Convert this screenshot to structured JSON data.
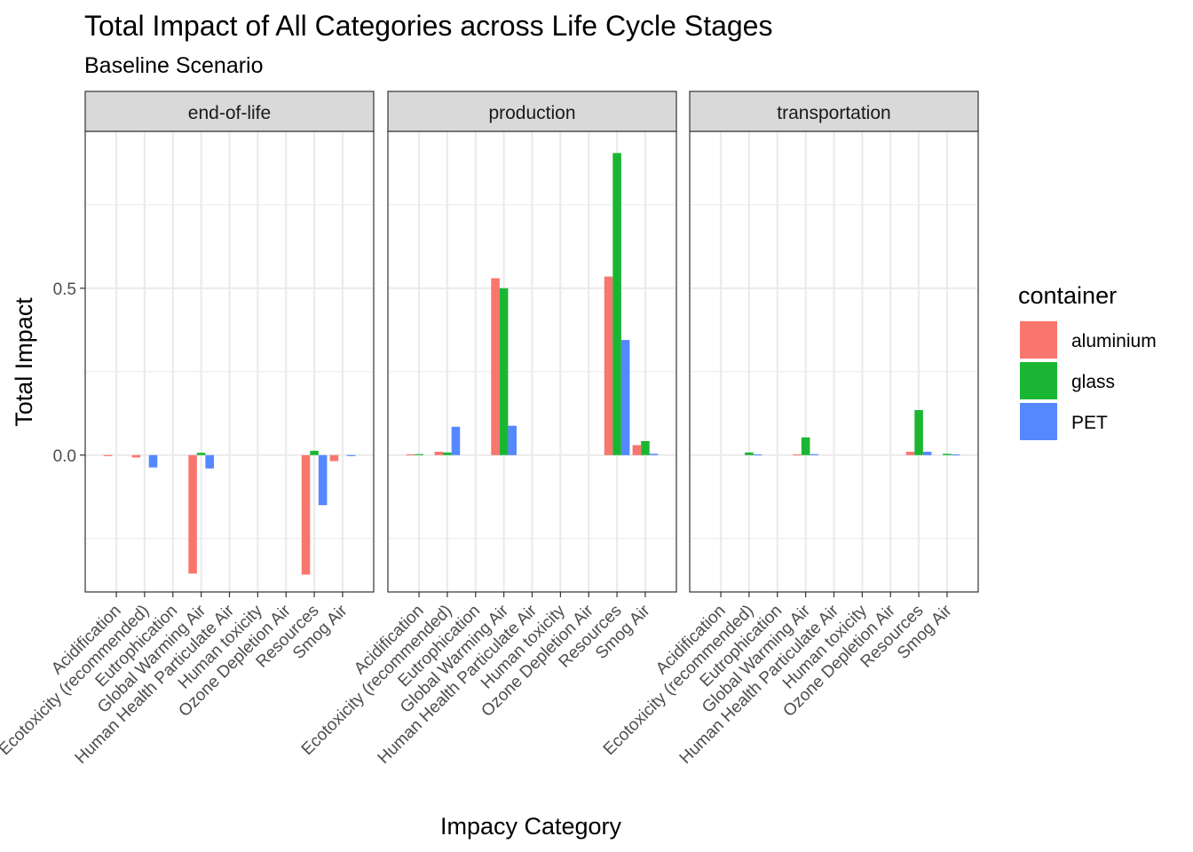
{
  "chart_data": {
    "type": "bar",
    "title": "Total Impact of All Categories across Life Cycle Stages",
    "subtitle": "Baseline Scenario",
    "xlabel": "Impacy Category",
    "ylabel": "Total Impact",
    "ylim": [
      -0.41,
      0.97
    ],
    "yticks": [
      0.0,
      0.5
    ],
    "ytick_labels": [
      "0.0",
      "0.5"
    ],
    "grid": true,
    "legend": {
      "title": "container",
      "placement": "right",
      "items": [
        {
          "label": "aluminium",
          "color": "#F8766D"
        },
        {
          "label": "glass",
          "color": "#1AB633"
        },
        {
          "label": "PET",
          "color": "#5587FF"
        }
      ]
    },
    "categories": [
      "Acidification",
      "Ecotoxicity (recommended)",
      "Eutrophication",
      "Global Warming Air",
      "Human Health Particulate Air",
      "Human toxicity",
      "Ozone Depletion Air",
      "Resources",
      "Smog Air"
    ],
    "facets": [
      {
        "name": "end-of-life",
        "series": [
          {
            "name": "aluminium",
            "values": [
              -0.003,
              -0.007,
              0.0,
              -0.355,
              0.0,
              0.0,
              0.0,
              -0.358,
              -0.018
            ]
          },
          {
            "name": "glass",
            "values": [
              0.0,
              0.0,
              0.0,
              0.007,
              0.0,
              0.0,
              0.0,
              0.013,
              0.0
            ]
          },
          {
            "name": "PET",
            "values": [
              0.0,
              -0.037,
              0.0,
              -0.04,
              0.0,
              0.0,
              0.0,
              -0.15,
              -0.003
            ]
          }
        ]
      },
      {
        "name": "production",
        "series": [
          {
            "name": "aluminium",
            "values": [
              0.002,
              0.01,
              0.0,
              0.53,
              0.0,
              0.0,
              0.0,
              0.535,
              0.03
            ]
          },
          {
            "name": "glass",
            "values": [
              0.003,
              0.008,
              0.0,
              0.5,
              0.0,
              0.0,
              0.0,
              0.905,
              0.042
            ]
          },
          {
            "name": "PET",
            "values": [
              0.0,
              0.085,
              0.0,
              0.088,
              0.0,
              0.0,
              0.0,
              0.345,
              0.004
            ]
          }
        ]
      },
      {
        "name": "transportation",
        "series": [
          {
            "name": "aluminium",
            "values": [
              0.0,
              0.0,
              0.0,
              0.002,
              0.0,
              0.0,
              0.0,
              0.01,
              0.0
            ]
          },
          {
            "name": "glass",
            "values": [
              0.0,
              0.008,
              0.0,
              0.053,
              0.0,
              0.0,
              0.0,
              0.135,
              0.004
            ]
          },
          {
            "name": "PET",
            "values": [
              0.0,
              0.002,
              0.0,
              0.003,
              0.0,
              0.0,
              0.0,
              0.01,
              0.002
            ]
          }
        ]
      }
    ]
  }
}
